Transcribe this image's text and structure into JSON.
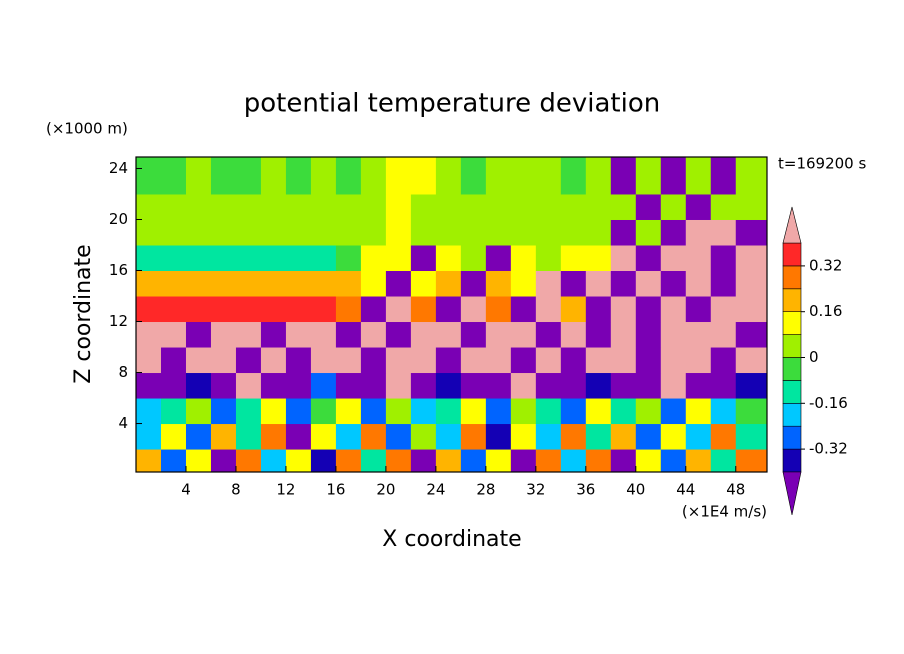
{
  "chart_data": {
    "type": "heatmap",
    "title": "potential temperature deviation",
    "x_label": "X coordinate",
    "y_label": "Z coordinate",
    "y_unit": "(×1000 m)",
    "x_unit": "(×1E4 m/s)",
    "time_label": "t=169200 s",
    "xlim": [
      0,
      50.5
    ],
    "ylim": [
      0.2,
      24.9
    ],
    "xticks": [
      4,
      8,
      12,
      16,
      20,
      24,
      28,
      32,
      36,
      40,
      44,
      48
    ],
    "yticks": [
      4,
      8,
      12,
      16,
      20,
      24
    ],
    "x": [
      1,
      3,
      5,
      7,
      9,
      11,
      13,
      15,
      17,
      19,
      21,
      23,
      25,
      27,
      29,
      31,
      33,
      35,
      37,
      39,
      41,
      43,
      45,
      47,
      49
    ],
    "z": [
      1,
      3,
      5,
      7,
      9,
      11,
      13,
      15,
      17,
      19,
      21,
      23
    ],
    "z_values": [
      [
        0.2,
        -0.3,
        0.1,
        -0.45,
        0.3,
        -0.2,
        0.1,
        -0.4,
        0.25,
        -0.1,
        0.3,
        -0.45,
        0.2,
        -0.3,
        0.1,
        -0.45,
        0.25,
        -0.2,
        0.3,
        -0.45,
        0.1,
        -0.3,
        0.2,
        -0.1,
        0.3
      ],
      [
        -0.2,
        0.1,
        -0.3,
        0.2,
        -0.15,
        0.3,
        -0.45,
        0.1,
        -0.2,
        0.3,
        -0.3,
        0.05,
        -0.2,
        0.25,
        -0.35,
        0.1,
        -0.2,
        0.3,
        -0.1,
        0.2,
        -0.3,
        0.1,
        -0.2,
        0.3,
        -0.15
      ],
      [
        -0.2,
        -0.1,
        0.05,
        -0.3,
        -0.15,
        0.1,
        -0.25,
        -0.05,
        0.15,
        -0.3,
        0.05,
        -0.2,
        -0.1,
        0.1,
        -0.25,
        0.05,
        -0.1,
        -0.3,
        0.1,
        -0.15,
        0.05,
        -0.25,
        0.1,
        -0.2,
        -0.05
      ],
      [
        -0.45,
        -0.5,
        -0.35,
        -0.45,
        0.45,
        -0.5,
        -0.45,
        -0.3,
        -0.5,
        -0.45,
        0.45,
        -0.5,
        -0.4,
        -0.45,
        -0.5,
        0.45,
        -0.45,
        -0.5,
        -0.35,
        -0.45,
        -0.5,
        0.45,
        -0.45,
        -0.5,
        -0.4
      ],
      [
        0.5,
        -0.5,
        0.5,
        0.45,
        -0.5,
        0.5,
        -0.45,
        0.5,
        0.5,
        -0.5,
        0.45,
        0.5,
        -0.5,
        0.5,
        0.45,
        -0.5,
        0.5,
        -0.45,
        0.5,
        0.5,
        -0.5,
        0.45,
        0.5,
        -0.5,
        0.5
      ],
      [
        0.45,
        0.5,
        -0.5,
        0.5,
        0.45,
        -0.45,
        0.5,
        0.5,
        -0.5,
        0.45,
        -0.5,
        0.5,
        0.45,
        -0.5,
        0.5,
        0.45,
        -0.5,
        0.5,
        -0.45,
        0.5,
        -0.5,
        0.45,
        0.5,
        0.5,
        -0.45
      ],
      [
        0.35,
        0.36,
        0.38,
        0.36,
        0.35,
        0.37,
        0.36,
        0.35,
        0.3,
        -0.5,
        0.5,
        0.28,
        -0.45,
        0.5,
        0.3,
        -0.5,
        0.45,
        0.2,
        -0.5,
        0.5,
        -0.45,
        0.5,
        -0.5,
        0.45,
        0.5
      ],
      [
        0.2,
        0.18,
        0.2,
        0.22,
        0.2,
        0.18,
        0.2,
        0.19,
        0.2,
        0.12,
        -0.5,
        0.15,
        0.18,
        -0.45,
        0.2,
        0.15,
        0.5,
        -0.5,
        0.45,
        -0.5,
        0.5,
        -0.5,
        0.5,
        -0.45,
        0.5
      ],
      [
        -0.1,
        -0.15,
        -0.12,
        -0.1,
        -0.13,
        -0.1,
        -0.12,
        -0.1,
        -0.05,
        0.1,
        0.15,
        -0.5,
        0.1,
        0.05,
        -0.45,
        0.1,
        0.05,
        0.12,
        0.1,
        0.45,
        -0.5,
        0.5,
        0.45,
        -0.5,
        0.5
      ],
      [
        0.03,
        0.02,
        0.05,
        0.03,
        0.02,
        0.04,
        0.03,
        0.05,
        0.02,
        0.04,
        0.12,
        0.03,
        0.02,
        0.05,
        0.03,
        0.02,
        0.04,
        0.03,
        0.02,
        -0.5,
        0.05,
        -0.45,
        0.5,
        0.45,
        -0.5
      ],
      [
        0.03,
        0.05,
        0.02,
        0.03,
        0.05,
        0.02,
        0.03,
        0.04,
        0.02,
        0.05,
        0.15,
        0.02,
        0.03,
        0.05,
        0.02,
        0.03,
        0.04,
        0.03,
        0.02,
        0.05,
        -0.5,
        0.04,
        -0.45,
        0.05,
        0.03
      ],
      [
        -0.02,
        -0.05,
        0.02,
        -0.03,
        -0.02,
        0.03,
        -0.03,
        0.02,
        -0.02,
        0.05,
        0.15,
        0.1,
        0.03,
        -0.02,
        0.02,
        0.03,
        0.02,
        -0.02,
        0.03,
        -0.45,
        0.03,
        -0.5,
        0.05,
        -0.45,
        0.03
      ]
    ],
    "levels": [
      -0.4,
      -0.32,
      -0.24,
      -0.16,
      -0.08,
      0,
      0.08,
      0.16,
      0.24,
      0.32,
      0.4
    ],
    "colors": [
      "#7a00b4",
      "#1400b4",
      "#0064ff",
      "#00c8ff",
      "#00e6a0",
      "#3cdc3c",
      "#a0f000",
      "#ffff00",
      "#ffb400",
      "#ff7800",
      "#ff2828",
      "#f0a8a8"
    ],
    "colorbar_ticks": [
      -0.32,
      -0.16,
      0,
      0.16,
      0.32
    ]
  }
}
